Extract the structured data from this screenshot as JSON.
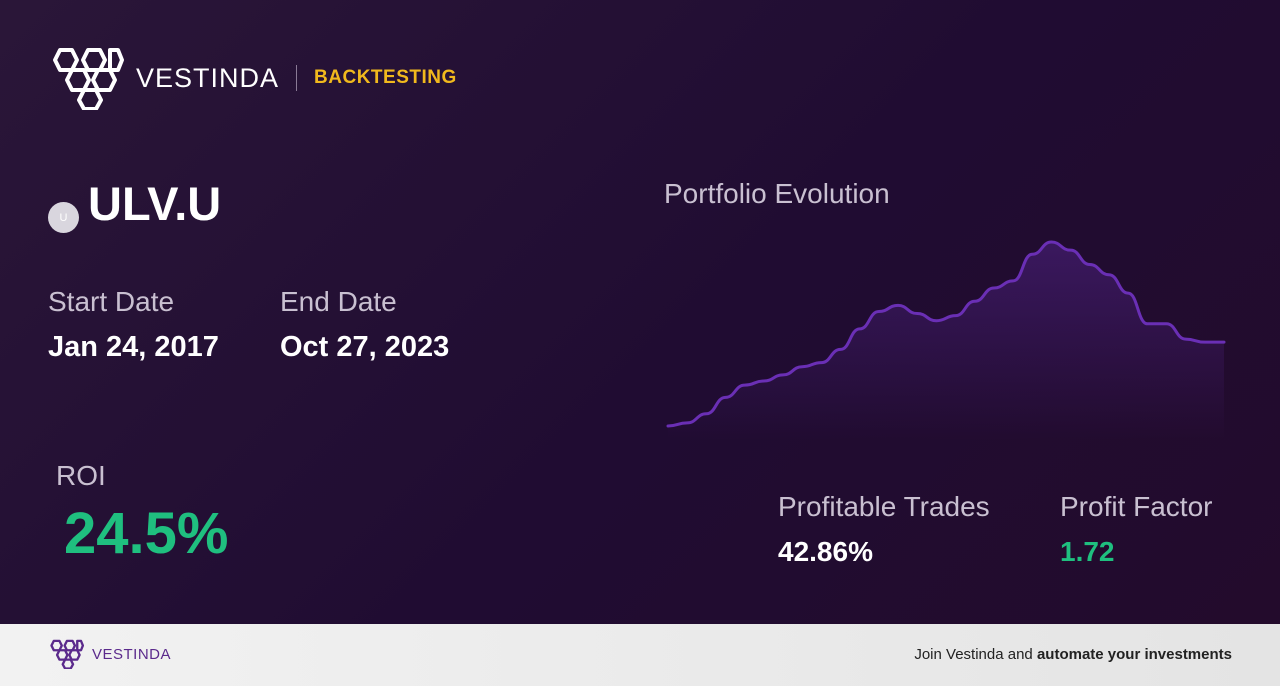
{
  "header": {
    "brand": "VESTINDA",
    "product": "BACKTESTING"
  },
  "ticker": {
    "symbol": "ULV.U",
    "icon_letter": "U"
  },
  "dates": {
    "start_label": "Start Date",
    "start_value": "Jan 24, 2017",
    "end_label": "End Date",
    "end_value": "Oct 27, 2023"
  },
  "roi": {
    "label": "ROI",
    "value": "24.5%"
  },
  "chart": {
    "title": "Portfolio Evolution",
    "line_color": "#6a2fb5"
  },
  "chart_data": {
    "type": "area",
    "title": "Portfolio Evolution",
    "values": [
      0,
      3,
      12,
      28,
      40,
      44,
      50,
      58,
      62,
      75,
      95,
      112,
      118,
      110,
      103,
      108,
      122,
      135,
      142,
      168,
      180,
      172,
      158,
      148,
      130,
      100,
      100,
      85,
      82,
      82
    ]
  },
  "stats": {
    "profitable_label": "Profitable Trades",
    "profitable_value": "42.86%",
    "factor_label": "Profit Factor",
    "factor_value": "1.72"
  },
  "footer": {
    "brand": "VESTINDA",
    "cta_prefix": "Join Vestinda and ",
    "cta_bold": "automate your investments"
  },
  "colors": {
    "accent_gold": "#f1b91d",
    "positive_green": "#1fbf7f",
    "brand_purple": "#5b2a8c"
  }
}
